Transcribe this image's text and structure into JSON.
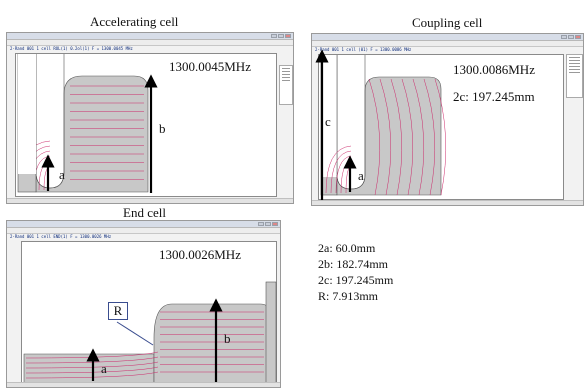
{
  "captions": {
    "accelerating": "Accelerating cell",
    "coupling": "Coupling cell",
    "end": "End cell"
  },
  "windows": {
    "accelerating": {
      "title_text": "2-Rand 001 1 cell ROL(1) 0.2ol(1)  F = 1300.0045 MHz",
      "frequency": "1300.0045MHz",
      "labels": {
        "a": "a",
        "b": "b"
      }
    },
    "coupling": {
      "title_text": "2-Rand 001 1 cell (01)  F = 1300.0086 MHz",
      "frequency": "1300.0086MHz",
      "param": "2c: 197.245mm",
      "labels": {
        "a": "a",
        "c": "c"
      }
    },
    "end": {
      "title_text": "2-Rand 001 1 cell END(1)  F = 1300.0026 MHz",
      "frequency": "1300.0026MHz",
      "labels": {
        "a": "a",
        "b": "b",
        "R": "R"
      }
    }
  },
  "parameters": [
    "2a: 60.0mm",
    "2b: 182.74mm",
    "2c: 197.245mm",
    "R: 7.913mm"
  ],
  "colors": {
    "field_lines": "#cc2a6b",
    "cavity_fill": "#c8c8c8",
    "arrow": "#000000",
    "plot_bg": "#ffffff",
    "title_text": "#0b2a7a"
  },
  "icons": {
    "window_controls": [
      "minimize-icon",
      "maximize-icon",
      "close-icon"
    ]
  }
}
